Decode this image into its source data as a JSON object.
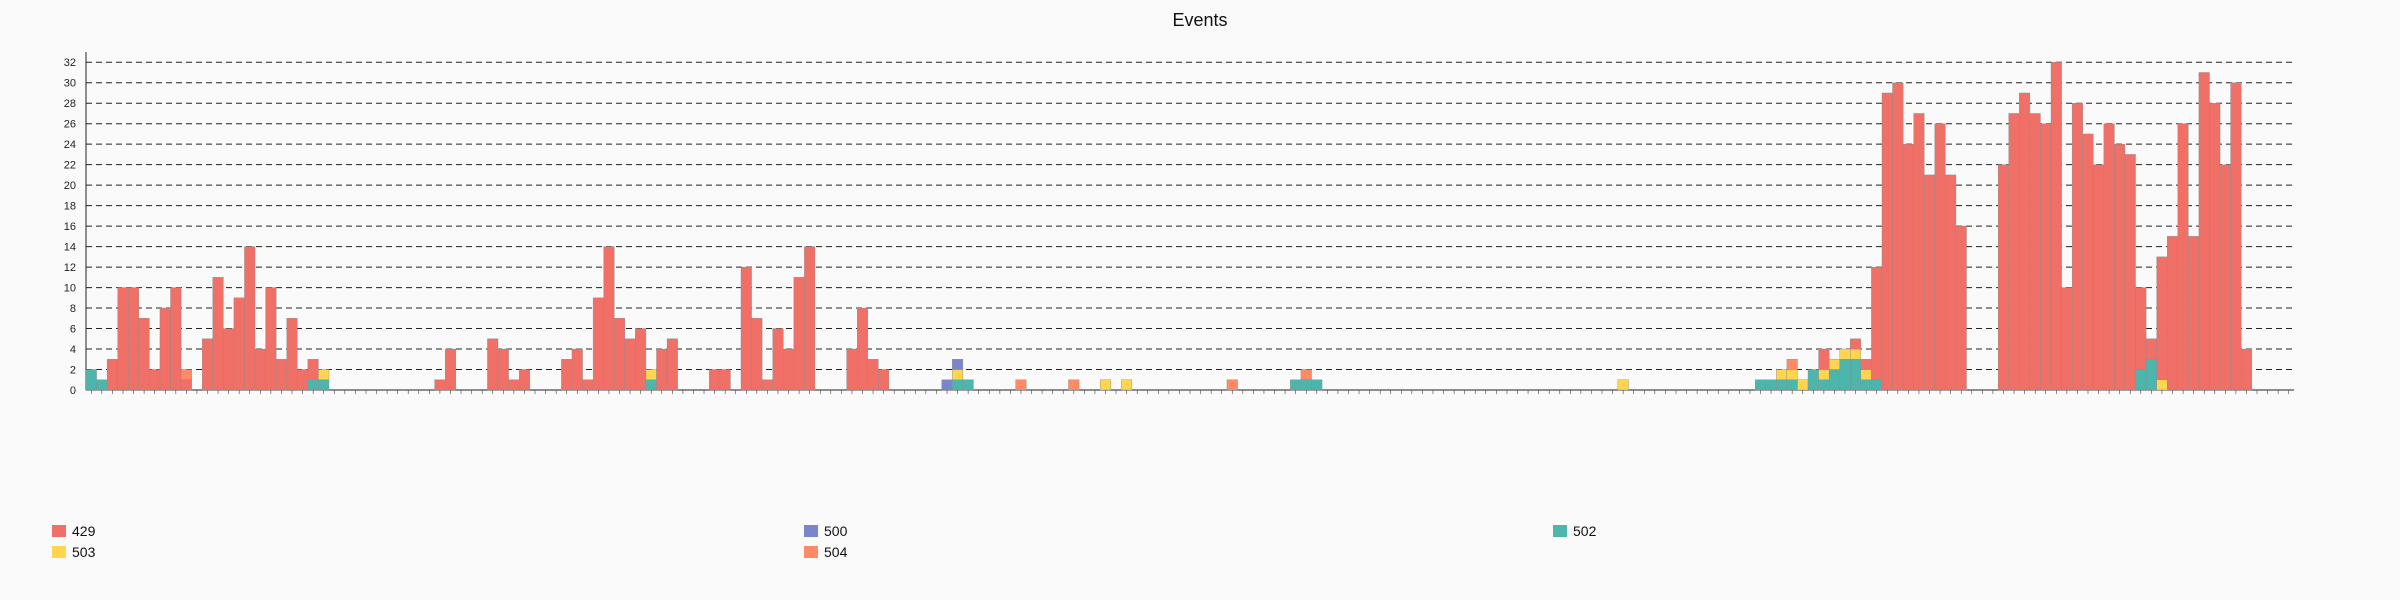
{
  "chart_data": {
    "type": "bar",
    "stacked": true,
    "title": "Events",
    "xlabel": "",
    "ylabel": "",
    "ylim": [
      0,
      33
    ],
    "yticks": [
      0,
      2,
      4,
      6,
      8,
      10,
      12,
      14,
      16,
      18,
      20,
      22,
      24,
      26,
      28,
      30,
      32
    ],
    "grid": "horizontal dashed",
    "legend_position": "bottom",
    "bin_count": 219,
    "x_tick_labels_note": "x-axis tick labels are dense rotated timestamps and are not legible",
    "series": [
      {
        "name": "429",
        "color": "#f07068"
      },
      {
        "name": "500",
        "color": "#7986cb"
      },
      {
        "name": "502",
        "color": "#4db6ac"
      },
      {
        "name": "503",
        "color": "#ffd54f"
      },
      {
        "name": "504",
        "color": "#ff8a65"
      }
    ],
    "bins": [
      [
        0,
        0,
        2,
        0,
        0
      ],
      [
        0,
        0,
        1,
        0,
        0
      ],
      [
        3,
        0,
        0,
        0,
        0
      ],
      [
        10,
        0,
        0,
        0,
        0
      ],
      [
        10,
        0,
        0,
        0,
        0
      ],
      [
        7,
        0,
        0,
        0,
        0
      ],
      [
        2,
        0,
        0,
        0,
        0
      ],
      [
        8,
        0,
        0,
        0,
        0
      ],
      [
        10,
        0,
        0,
        0,
        0
      ],
      [
        1,
        0,
        0,
        0,
        1
      ],
      [
        0,
        0,
        0,
        0,
        0
      ],
      [
        5,
        0,
        0,
        0,
        0
      ],
      [
        11,
        0,
        0,
        0,
        0
      ],
      [
        6,
        0,
        0,
        0,
        0
      ],
      [
        9,
        0,
        0,
        0,
        0
      ],
      [
        14,
        0,
        0,
        0,
        0
      ],
      [
        4,
        0,
        0,
        0,
        0
      ],
      [
        10,
        0,
        0,
        0,
        0
      ],
      [
        3,
        0,
        0,
        0,
        0
      ],
      [
        7,
        0,
        0,
        0,
        0
      ],
      [
        2,
        0,
        0,
        0,
        0
      ],
      [
        2,
        0,
        1,
        0,
        0
      ],
      [
        0,
        0,
        1,
        1,
        0
      ],
      [
        0,
        0,
        0,
        0,
        0
      ],
      [
        0,
        0,
        0,
        0,
        0
      ],
      [
        0,
        0,
        0,
        0,
        0
      ],
      [
        0,
        0,
        0,
        0,
        0
      ],
      [
        0,
        0,
        0,
        0,
        0
      ],
      [
        0,
        0,
        0,
        0,
        0
      ],
      [
        0,
        0,
        0,
        0,
        0
      ],
      [
        0,
        0,
        0,
        0,
        0
      ],
      [
        0,
        0,
        0,
        0,
        0
      ],
      [
        0,
        0,
        0,
        0,
        0
      ],
      [
        1,
        0,
        0,
        0,
        0
      ],
      [
        4,
        0,
        0,
        0,
        0
      ],
      [
        0,
        0,
        0,
        0,
        0
      ],
      [
        0,
        0,
        0,
        0,
        0
      ],
      [
        0,
        0,
        0,
        0,
        0
      ],
      [
        5,
        0,
        0,
        0,
        0
      ],
      [
        4,
        0,
        0,
        0,
        0
      ],
      [
        1,
        0,
        0,
        0,
        0
      ],
      [
        2,
        0,
        0,
        0,
        0
      ],
      [
        0,
        0,
        0,
        0,
        0
      ],
      [
        0,
        0,
        0,
        0,
        0
      ],
      [
        0,
        0,
        0,
        0,
        0
      ],
      [
        3,
        0,
        0,
        0,
        0
      ],
      [
        4,
        0,
        0,
        0,
        0
      ],
      [
        1,
        0,
        0,
        0,
        0
      ],
      [
        9,
        0,
        0,
        0,
        0
      ],
      [
        14,
        0,
        0,
        0,
        0
      ],
      [
        7,
        0,
        0,
        0,
        0
      ],
      [
        5,
        0,
        0,
        0,
        0
      ],
      [
        6,
        0,
        0,
        0,
        0
      ],
      [
        0,
        0,
        1,
        1,
        0
      ],
      [
        4,
        0,
        0,
        0,
        0
      ],
      [
        5,
        0,
        0,
        0,
        0
      ],
      [
        0,
        0,
        0,
        0,
        0
      ],
      [
        0,
        0,
        0,
        0,
        0
      ],
      [
        0,
        0,
        0,
        0,
        0
      ],
      [
        2,
        0,
        0,
        0,
        0
      ],
      [
        2,
        0,
        0,
        0,
        0
      ],
      [
        0,
        0,
        0,
        0,
        0
      ],
      [
        12,
        0,
        0,
        0,
        0
      ],
      [
        7,
        0,
        0,
        0,
        0
      ],
      [
        1,
        0,
        0,
        0,
        0
      ],
      [
        6,
        0,
        0,
        0,
        0
      ],
      [
        4,
        0,
        0,
        0,
        0
      ],
      [
        11,
        0,
        0,
        0,
        0
      ],
      [
        14,
        0,
        0,
        0,
        0
      ],
      [
        0,
        0,
        0,
        0,
        0
      ],
      [
        0,
        0,
        0,
        0,
        0
      ],
      [
        0,
        0,
        0,
        0,
        0
      ],
      [
        4,
        0,
        0,
        0,
        0
      ],
      [
        8,
        0,
        0,
        0,
        0
      ],
      [
        3,
        0,
        0,
        0,
        0
      ],
      [
        2,
        0,
        0,
        0,
        0
      ],
      [
        0,
        0,
        0,
        0,
        0
      ],
      [
        0,
        0,
        0,
        0,
        0
      ],
      [
        0,
        0,
        0,
        0,
        0
      ],
      [
        0,
        0,
        0,
        0,
        0
      ],
      [
        0,
        0,
        0,
        0,
        0
      ],
      [
        0,
        1,
        0,
        0,
        0
      ],
      [
        0,
        1,
        1,
        1,
        0
      ],
      [
        0,
        0,
        1,
        0,
        0
      ],
      [
        0,
        0,
        0,
        0,
        0
      ],
      [
        0,
        0,
        0,
        0,
        0
      ],
      [
        0,
        0,
        0,
        0,
        0
      ],
      [
        0,
        0,
        0,
        0,
        0
      ],
      [
        0,
        0,
        0,
        0,
        1
      ],
      [
        0,
        0,
        0,
        0,
        0
      ],
      [
        0,
        0,
        0,
        0,
        0
      ],
      [
        0,
        0,
        0,
        0,
        0
      ],
      [
        0,
        0,
        0,
        0,
        0
      ],
      [
        0,
        0,
        0,
        0,
        1
      ],
      [
        0,
        0,
        0,
        0,
        0
      ],
      [
        0,
        0,
        0,
        0,
        0
      ],
      [
        0,
        0,
        0,
        1,
        0
      ],
      [
        0,
        0,
        0,
        0,
        0
      ],
      [
        0,
        0,
        0,
        1,
        0
      ],
      [
        0,
        0,
        0,
        0,
        0
      ],
      [
        0,
        0,
        0,
        0,
        0
      ],
      [
        0,
        0,
        0,
        0,
        0
      ],
      [
        0,
        0,
        0,
        0,
        0
      ],
      [
        0,
        0,
        0,
        0,
        0
      ],
      [
        0,
        0,
        0,
        0,
        0
      ],
      [
        0,
        0,
        0,
        0,
        0
      ],
      [
        0,
        0,
        0,
        0,
        0
      ],
      [
        0,
        0,
        0,
        0,
        0
      ],
      [
        0,
        0,
        0,
        0,
        1
      ],
      [
        0,
        0,
        0,
        0,
        0
      ],
      [
        0,
        0,
        0,
        0,
        0
      ],
      [
        0,
        0,
        0,
        0,
        0
      ],
      [
        0,
        0,
        0,
        0,
        0
      ],
      [
        0,
        0,
        0,
        0,
        0
      ],
      [
        0,
        0,
        1,
        0,
        0
      ],
      [
        0,
        0,
        1,
        0,
        1
      ],
      [
        0,
        0,
        1,
        0,
        0
      ],
      [
        0,
        0,
        0,
        0,
        0
      ],
      [
        0,
        0,
        0,
        0,
        0
      ],
      [
        0,
        0,
        0,
        0,
        0
      ],
      [
        0,
        0,
        0,
        0,
        0
      ],
      [
        0,
        0,
        0,
        0,
        0
      ],
      [
        0,
        0,
        0,
        0,
        0
      ],
      [
        0,
        0,
        0,
        0,
        0
      ],
      [
        0,
        0,
        0,
        0,
        0
      ],
      [
        0,
        0,
        0,
        0,
        0
      ],
      [
        0,
        0,
        0,
        0,
        0
      ],
      [
        0,
        0,
        0,
        0,
        0
      ],
      [
        0,
        0,
        0,
        0,
        0
      ],
      [
        0,
        0,
        0,
        0,
        0
      ],
      [
        0,
        0,
        0,
        0,
        0
      ],
      [
        0,
        0,
        0,
        0,
        0
      ],
      [
        0,
        0,
        0,
        0,
        0
      ],
      [
        0,
        0,
        0,
        0,
        0
      ],
      [
        0,
        0,
        0,
        0,
        0
      ],
      [
        0,
        0,
        0,
        0,
        0
      ],
      [
        0,
        0,
        0,
        0,
        0
      ],
      [
        0,
        0,
        0,
        0,
        0
      ],
      [
        0,
        0,
        0,
        0,
        0
      ],
      [
        0,
        0,
        0,
        0,
        0
      ],
      [
        0,
        0,
        0,
        0,
        0
      ],
      [
        0,
        0,
        0,
        0,
        0
      ],
      [
        0,
        0,
        0,
        0,
        0
      ],
      [
        0,
        0,
        0,
        0,
        0
      ],
      [
        0,
        0,
        0,
        0,
        0
      ],
      [
        0,
        0,
        0,
        1,
        0
      ],
      [
        0,
        0,
        0,
        0,
        0
      ],
      [
        0,
        0,
        0,
        0,
        0
      ],
      [
        0,
        0,
        0,
        0,
        0
      ],
      [
        0,
        0,
        0,
        0,
        0
      ],
      [
        0,
        0,
        0,
        0,
        0
      ],
      [
        0,
        0,
        0,
        0,
        0
      ],
      [
        0,
        0,
        0,
        0,
        0
      ],
      [
        0,
        0,
        0,
        0,
        0
      ],
      [
        0,
        0,
        0,
        0,
        0
      ],
      [
        0,
        0,
        0,
        0,
        0
      ],
      [
        0,
        0,
        0,
        0,
        0
      ],
      [
        0,
        0,
        0,
        0,
        0
      ],
      [
        0,
        0,
        1,
        0,
        0
      ],
      [
        0,
        0,
        1,
        0,
        0
      ],
      [
        0,
        0,
        1,
        1,
        0
      ],
      [
        0,
        0,
        1,
        1,
        1
      ],
      [
        0,
        0,
        0,
        1,
        0
      ],
      [
        0,
        0,
        2,
        0,
        0
      ],
      [
        2,
        0,
        1,
        1,
        0
      ],
      [
        0,
        0,
        2,
        1,
        0
      ],
      [
        0,
        0,
        3,
        1,
        0
      ],
      [
        1,
        0,
        3,
        1,
        0
      ],
      [
        1,
        0,
        1,
        1,
        0
      ],
      [
        11,
        0,
        1,
        0,
        0
      ],
      [
        29,
        0,
        0,
        0,
        0
      ],
      [
        30,
        0,
        0,
        0,
        0
      ],
      [
        24,
        0,
        0,
        0,
        0
      ],
      [
        27,
        0,
        0,
        0,
        0
      ],
      [
        21,
        0,
        0,
        0,
        0
      ],
      [
        26,
        0,
        0,
        0,
        0
      ],
      [
        21,
        0,
        0,
        0,
        0
      ],
      [
        16,
        0,
        0,
        0,
        0
      ],
      [
        0,
        0,
        0,
        0,
        0
      ],
      [
        0,
        0,
        0,
        0,
        0
      ],
      [
        0,
        0,
        0,
        0,
        0
      ],
      [
        22,
        0,
        0,
        0,
        0
      ],
      [
        27,
        0,
        0,
        0,
        0
      ],
      [
        29,
        0,
        0,
        0,
        0
      ],
      [
        27,
        0,
        0,
        0,
        0
      ],
      [
        26,
        0,
        0,
        0,
        0
      ],
      [
        32,
        0,
        0,
        0,
        0
      ],
      [
        10,
        0,
        0,
        0,
        0
      ],
      [
        28,
        0,
        0,
        0,
        0
      ],
      [
        25,
        0,
        0,
        0,
        0
      ],
      [
        22,
        0,
        0,
        0,
        0
      ],
      [
        26,
        0,
        0,
        0,
        0
      ],
      [
        24,
        0,
        0,
        0,
        0
      ],
      [
        23,
        0,
        0,
        0,
        0
      ],
      [
        8,
        0,
        2,
        0,
        0
      ],
      [
        2,
        0,
        3,
        0,
        0
      ],
      [
        12,
        0,
        0,
        1,
        0
      ],
      [
        15,
        0,
        0,
        0,
        0
      ],
      [
        26,
        0,
        0,
        0,
        0
      ],
      [
        15,
        0,
        0,
        0,
        0
      ],
      [
        31,
        0,
        0,
        0,
        0
      ],
      [
        28,
        0,
        0,
        0,
        0
      ],
      [
        22,
        0,
        0,
        0,
        0
      ],
      [
        30,
        0,
        0,
        0,
        0
      ],
      [
        4,
        0,
        0,
        0,
        0
      ],
      [
        0,
        0,
        0,
        0,
        0
      ],
      [
        0,
        0,
        0,
        0,
        0
      ],
      [
        0,
        0,
        0,
        0,
        0
      ],
      [
        0,
        0,
        0,
        0,
        0
      ]
    ]
  }
}
